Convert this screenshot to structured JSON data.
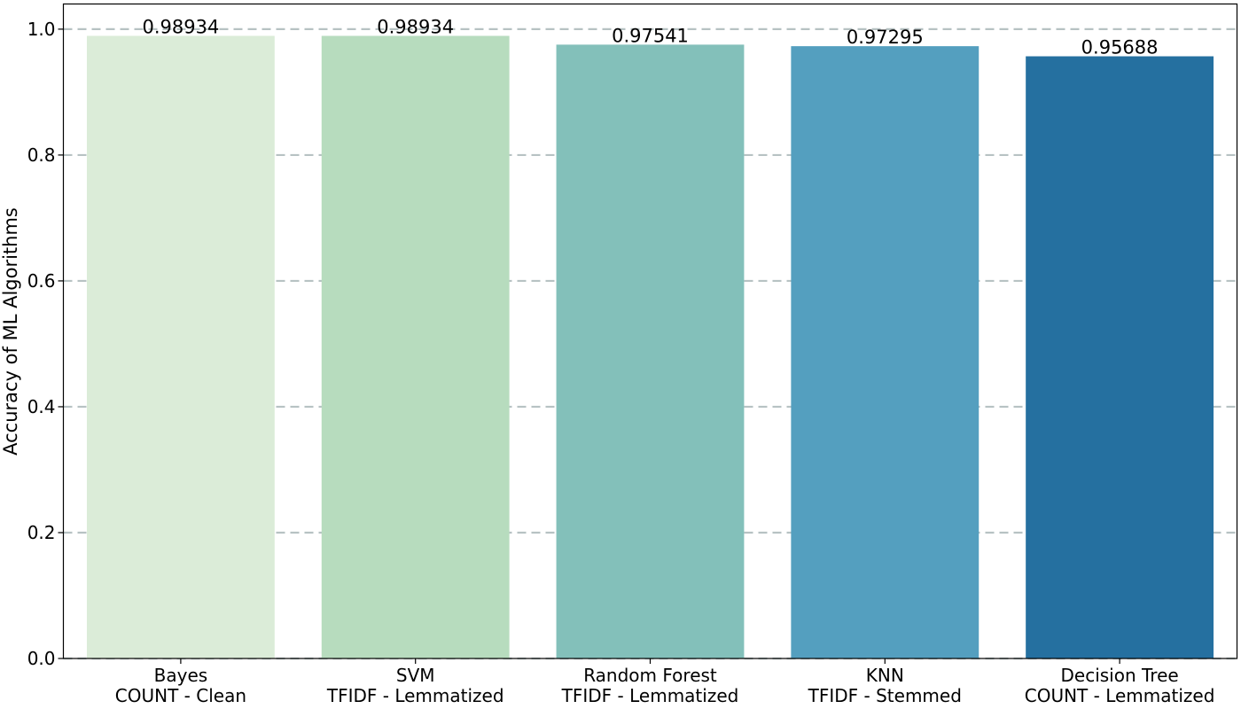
{
  "chart_data": {
    "type": "bar",
    "title": "",
    "xlabel": "",
    "ylabel": "Accuracy of ML Algorithms",
    "ylim": [
      0,
      1.04
    ],
    "yticks": [
      0.0,
      0.2,
      0.4,
      0.6,
      0.8,
      1.0
    ],
    "ytick_labels": [
      "0.0",
      "0.2",
      "0.4",
      "0.6",
      "0.8",
      "1.0"
    ],
    "grid": "y, dashed",
    "categories": [
      [
        "Bayes",
        "COUNT - Clean"
      ],
      [
        "SVM",
        "TFIDF - Lemmatized"
      ],
      [
        "Random Forest",
        "TFIDF - Lemmatized"
      ],
      [
        "KNN",
        "TFIDF - Stemmed"
      ],
      [
        "Decision Tree",
        "COUNT - Lemmatized"
      ]
    ],
    "values": [
      0.98934,
      0.98934,
      0.97541,
      0.97295,
      0.95688
    ],
    "value_labels": [
      "0.98934",
      "0.98934",
      "0.97541",
      "0.97295",
      "0.95688"
    ],
    "colors": [
      "#dbecd8",
      "#b7dcbe",
      "#83c0ba",
      "#549fbf",
      "#2570a0"
    ]
  }
}
